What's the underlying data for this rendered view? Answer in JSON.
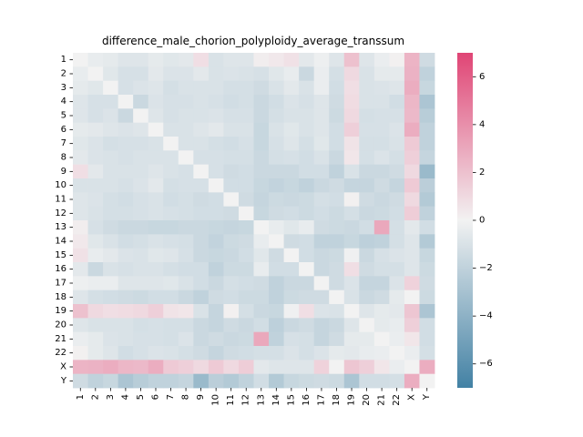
{
  "chart_data": {
    "type": "heatmap",
    "title": "difference_male_chorion_polyploidy_average_transsum",
    "row_labels": [
      "1",
      "2",
      "3",
      "4",
      "5",
      "6",
      "7",
      "8",
      "9",
      "10",
      "11",
      "12",
      "13",
      "14",
      "15",
      "16",
      "17",
      "18",
      "19",
      "20",
      "21",
      "22",
      "X",
      "Y"
    ],
    "col_labels": [
      "1",
      "2",
      "3",
      "4",
      "5",
      "6",
      "7",
      "8",
      "9",
      "10",
      "11",
      "12",
      "13",
      "14",
      "15",
      "16",
      "17",
      "18",
      "19",
      "20",
      "21",
      "22",
      "X",
      "Y"
    ],
    "colorbar": {
      "min": -7,
      "max": 7,
      "ticks": [
        -6,
        -4,
        -2,
        0,
        2,
        4,
        6
      ]
    },
    "values": [
      [
        0,
        -0.4,
        -0.5,
        -0.8,
        -0.8,
        -0.5,
        -0.7,
        -0.6,
        0.8,
        -1,
        -0.8,
        -0.8,
        0.2,
        0.4,
        0.7,
        -0.6,
        -0.2,
        -0.8,
        2,
        -0.8,
        -0.3,
        0.1,
        2.5,
        -1.4
      ],
      [
        -0.4,
        0,
        -0.7,
        -1.1,
        -1.1,
        -0.6,
        -0.9,
        -0.9,
        -0.6,
        -1,
        -0.9,
        -1,
        -1.1,
        -0.7,
        -0.4,
        -1.6,
        -0.3,
        -1.2,
        1,
        -1,
        -0.5,
        -0.5,
        2.6,
        -2
      ],
      [
        -0.5,
        -0.7,
        0,
        -1.1,
        -0.9,
        -0.8,
        -1.2,
        -1,
        -1,
        -1,
        -1.2,
        -1.2,
        -1.4,
        -1,
        -0.6,
        -1,
        -0.3,
        -1.3,
        0.8,
        -1,
        -0.9,
        -0.8,
        2.8,
        -1.7
      ],
      [
        -0.8,
        -1.1,
        -1.1,
        0,
        -1.6,
        -0.9,
        -1.1,
        -1.1,
        -1,
        -1.1,
        -1.3,
        -1.2,
        -1.6,
        -1.3,
        -0.9,
        -1.1,
        -0.8,
        -1.4,
        0.9,
        -1,
        -1,
        -1.3,
        2.4,
        -2.8
      ],
      [
        -0.8,
        -1.1,
        -0.9,
        -1.6,
        0,
        -0.8,
        -1.1,
        -1,
        -1,
        -0.9,
        -1.1,
        -1.1,
        -1.6,
        -1.2,
        -1,
        -1,
        -0.8,
        -1.5,
        1,
        -1.2,
        -1.1,
        -1.1,
        2.3,
        -2.3
      ],
      [
        -0.5,
        -0.6,
        -0.8,
        -0.9,
        -0.8,
        0,
        -1,
        -1,
        -0.8,
        -0.6,
        -1,
        -1,
        -1.7,
        -1,
        -0.7,
        -1,
        -0.8,
        -1.3,
        1.4,
        -1.1,
        -1.1,
        -0.9,
        2.8,
        -2
      ],
      [
        -0.7,
        -0.9,
        -1.2,
        -1.1,
        -1.1,
        -1,
        0,
        -1,
        -1,
        -1.2,
        -1.3,
        -1.1,
        -1.7,
        -1.1,
        -0.8,
        -1.2,
        -0.7,
        -1.3,
        0.6,
        -1.2,
        -1.2,
        -1,
        1.6,
        -2
      ],
      [
        -0.6,
        -0.9,
        -1,
        -1.1,
        -1,
        -1,
        -1,
        0,
        -1.1,
        -1.1,
        -1.2,
        -1.2,
        -1.6,
        -1.2,
        -1.1,
        -1.3,
        -1,
        -1.6,
        0.5,
        -1.2,
        -0.9,
        -1.2,
        1.4,
        -1.8
      ],
      [
        0.8,
        -0.6,
        -1,
        -1,
        -1,
        -0.8,
        -1,
        -1.1,
        0,
        -1.1,
        -1.4,
        -1.3,
        -1.6,
        -1.6,
        -1.6,
        -1.3,
        -1.3,
        -2,
        -1,
        -1.6,
        -1.6,
        -1.4,
        1,
        -3.5
      ],
      [
        -1,
        -1,
        -1,
        -1.1,
        -0.9,
        -0.6,
        -1.2,
        -1.1,
        -1.1,
        0,
        -1.3,
        -1.3,
        -1.7,
        -1.9,
        -1.7,
        -2,
        -1.6,
        -1.4,
        -1.8,
        -1.8,
        -1.4,
        -1.8,
        1.6,
        -2.2
      ],
      [
        -0.8,
        -0.9,
        -1.2,
        -1.3,
        -1.1,
        -1,
        -1.3,
        -1.2,
        -1.4,
        -1.3,
        0,
        -1.4,
        -1.8,
        -1.5,
        -1.6,
        -1.5,
        -1.2,
        -1.3,
        0.1,
        -1.4,
        -1.6,
        -1.4,
        1,
        -2.5
      ],
      [
        -0.8,
        -1,
        -1.2,
        -1.2,
        -1.1,
        -1,
        -1.1,
        -1.2,
        -1.3,
        -1.3,
        -1.4,
        0,
        -1.7,
        -1.4,
        -1.3,
        -1.5,
        -1.3,
        -1.5,
        -1.2,
        -1.6,
        -1.5,
        -1.3,
        1.5,
        -2
      ],
      [
        0.2,
        -1.1,
        -1.4,
        -1.6,
        -1.6,
        -1.7,
        -1.7,
        -1.6,
        -1.6,
        -1.7,
        -1.8,
        -1.7,
        0,
        -0.4,
        -0.7,
        -0.4,
        -1.4,
        -1.5,
        -1.6,
        -1.3,
        3,
        -1.2,
        -0.6,
        -1.3
      ],
      [
        0.4,
        -0.7,
        -1,
        -1.3,
        -1.2,
        -1,
        -1.1,
        -1.2,
        -1.6,
        -1.9,
        -1.5,
        -1.4,
        -0.4,
        0,
        -1.4,
        -1.3,
        -2,
        -2,
        -1.7,
        -2.1,
        -2,
        -1.2,
        -0.8,
        -2.5
      ],
      [
        0.7,
        -0.4,
        -0.6,
        -0.9,
        -1,
        -0.7,
        -0.8,
        -1.1,
        -1.6,
        -1.7,
        -1.6,
        -1.3,
        -0.7,
        -1.4,
        0,
        -1.3,
        -1.6,
        -1.5,
        -0.1,
        -1.6,
        -1.1,
        -0.9,
        -0.8,
        -1.7
      ],
      [
        -0.6,
        -1.6,
        -1,
        -1.1,
        -1,
        -1,
        -1.2,
        -1.3,
        -1.3,
        -2,
        -1.5,
        -1.5,
        -0.4,
        -1.3,
        -1.3,
        0,
        -1.6,
        -1.4,
        0.8,
        -1.4,
        -1.2,
        -1.2,
        -0.8,
        -1.5
      ],
      [
        -0.2,
        -0.3,
        -0.3,
        -0.8,
        -0.8,
        -0.8,
        -0.7,
        -1,
        -1.3,
        -1.6,
        -1.2,
        -1.3,
        -1.4,
        -2,
        -1.6,
        -1.6,
        0,
        -1.4,
        -0.9,
        -1.8,
        -1.8,
        -0.9,
        1.3,
        -1.4
      ],
      [
        -0.8,
        -1.2,
        -1.3,
        -1.4,
        -1.5,
        -1.3,
        -1.3,
        -1.6,
        -2,
        -1.4,
        -1.3,
        -1.5,
        -1.5,
        -2,
        -1.5,
        -1.4,
        -1.4,
        0,
        -1,
        -1.6,
        -1.4,
        -0.5,
        0,
        -1.5
      ],
      [
        2,
        1,
        0.8,
        0.9,
        1,
        1.4,
        0.6,
        0.5,
        -1,
        -1.8,
        0.1,
        -1.2,
        -1.6,
        -1.7,
        -0.1,
        0.8,
        -0.9,
        -1,
        0,
        -0.8,
        -0.5,
        -0.6,
        1.8,
        -2.8
      ],
      [
        -0.8,
        -1,
        -1,
        -1,
        -1.2,
        -1.1,
        -1.2,
        -1.2,
        -1.6,
        -1.8,
        -1.4,
        -1.6,
        -1.3,
        -2.1,
        -1.6,
        -1.4,
        -1.8,
        -1.6,
        -0.8,
        0,
        -0.5,
        -0.4,
        1.4,
        -1.3
      ],
      [
        -0.3,
        -0.5,
        -0.9,
        -1,
        -1.1,
        -1.1,
        -1.2,
        -0.9,
        -1.6,
        -1.4,
        -1.6,
        -1.5,
        3,
        -2,
        -1.1,
        -1.2,
        -1.8,
        -1.4,
        -0.5,
        -0.5,
        0,
        -0.3,
        0.5,
        -1.3
      ],
      [
        0.1,
        -0.5,
        -0.8,
        -1.3,
        -1.1,
        -0.9,
        -1,
        -1.2,
        -1.4,
        -1.8,
        -1.4,
        -1.3,
        -1.2,
        -1.2,
        -0.9,
        -1.2,
        -0.9,
        -0.5,
        -0.6,
        -0.4,
        -0.3,
        0,
        -0.3,
        -1.2
      ],
      [
        2.5,
        2.6,
        2.8,
        2.4,
        2.3,
        2.8,
        1.6,
        1.4,
        1,
        1.6,
        1,
        1.5,
        -0.6,
        -0.8,
        -0.8,
        -0.8,
        1.3,
        0,
        1.8,
        1.4,
        0.5,
        -0.3,
        0,
        2.8
      ],
      [
        -1.4,
        -2,
        -1.7,
        -2.8,
        -2.3,
        -2,
        -2,
        -1.8,
        -3.5,
        -2.2,
        -2.5,
        -2,
        -1.3,
        -2.5,
        -1.7,
        -1.5,
        -1.4,
        -1.5,
        -2.8,
        -1.3,
        -1.3,
        -1.2,
        2.8,
        0
      ]
    ]
  }
}
